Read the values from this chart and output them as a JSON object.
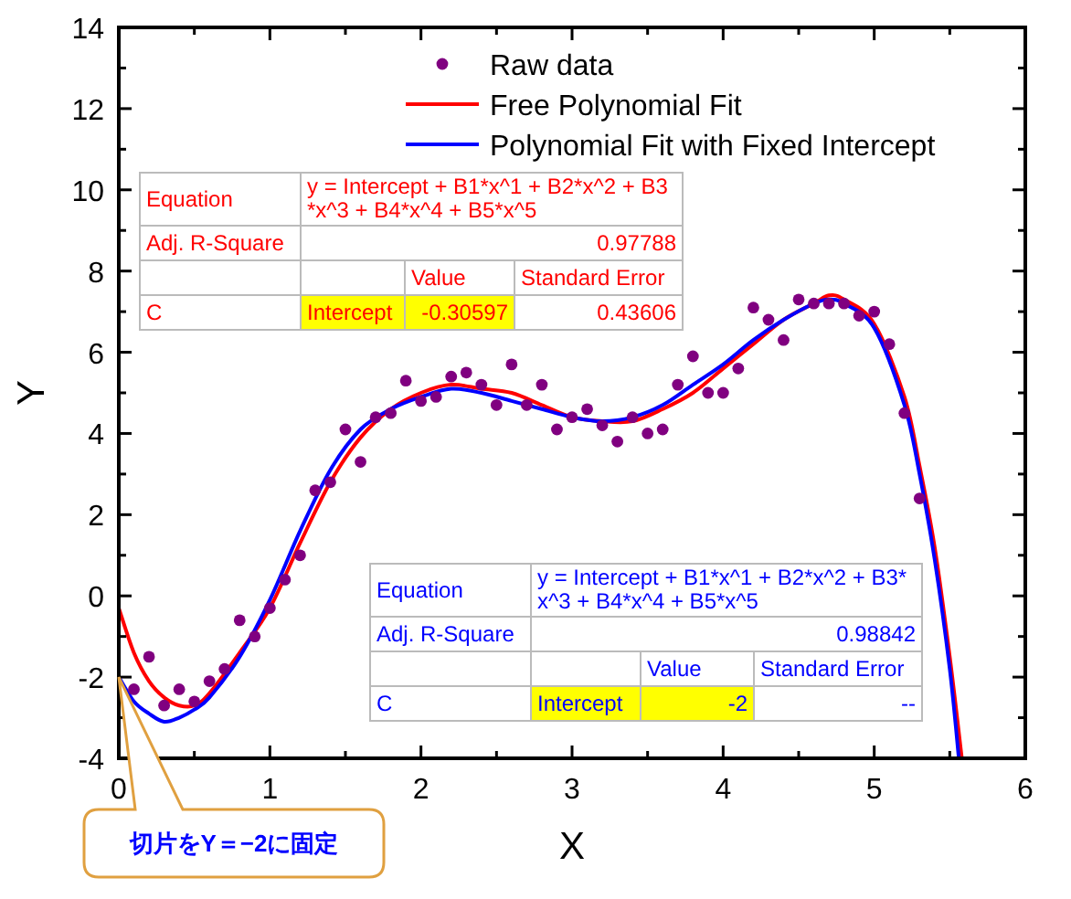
{
  "chart_data": {
    "type": "scatter",
    "xlabel": "X",
    "ylabel": "Y",
    "xlim": [
      0,
      6
    ],
    "xticks": [
      0,
      1,
      2,
      3,
      4,
      5,
      6
    ],
    "ylim": [
      -4,
      14
    ],
    "yticks": [
      -4,
      -2,
      0,
      2,
      4,
      6,
      8,
      10,
      12,
      14
    ],
    "grid": false,
    "legend": "top right",
    "series": [
      {
        "name": "Raw data",
        "marker": "circle",
        "color": "#800080",
        "x": [
          0.1,
          0.2,
          0.3,
          0.4,
          0.5,
          0.6,
          0.7,
          0.8,
          0.9,
          1.0,
          1.1,
          1.2,
          1.3,
          1.4,
          1.5,
          1.6,
          1.7,
          1.8,
          1.9,
          2.0,
          2.1,
          2.2,
          2.3,
          2.4,
          2.5,
          2.6,
          2.7,
          2.8,
          2.9,
          3.0,
          3.1,
          3.2,
          3.3,
          3.4,
          3.5,
          3.6,
          3.7,
          3.8,
          3.9,
          4.0,
          4.1,
          4.2,
          4.3,
          4.4,
          4.5,
          4.6,
          4.7,
          4.8,
          4.9,
          5.0,
          5.1,
          5.2,
          5.3
        ],
        "values": [
          -2.3,
          -1.5,
          -2.7,
          -2.3,
          -2.6,
          -2.1,
          -1.8,
          -0.6,
          -1.0,
          -0.3,
          0.4,
          1.0,
          2.6,
          2.8,
          4.1,
          3.3,
          4.4,
          4.5,
          5.3,
          4.8,
          4.9,
          5.4,
          5.5,
          5.2,
          4.7,
          5.7,
          4.7,
          5.2,
          4.1,
          4.4,
          4.6,
          4.2,
          3.8,
          4.4,
          4.0,
          4.1,
          5.2,
          5.9,
          5.0,
          5.0,
          5.6,
          7.1,
          6.8,
          6.3,
          7.3,
          7.2,
          7.2,
          7.2,
          6.9,
          7.0,
          6.2,
          4.5,
          2.4
        ]
      },
      {
        "name": "Free Polynomial Fit",
        "type": "line",
        "line_style": "solid",
        "color": "#ff0000",
        "x": [
          0,
          0.1,
          0.2,
          0.3,
          0.4,
          0.5,
          0.6,
          0.8,
          1.0,
          1.2,
          1.4,
          1.6,
          1.8,
          2.0,
          2.2,
          2.4,
          2.6,
          2.8,
          3.0,
          3.2,
          3.4,
          3.6,
          3.8,
          4.0,
          4.2,
          4.4,
          4.6,
          4.7,
          4.8,
          5.0,
          5.2,
          5.3,
          5.4,
          5.5,
          5.58
        ],
        "values": [
          -0.3,
          -1.4,
          -2.1,
          -2.5,
          -2.7,
          -2.7,
          -2.4,
          -1.4,
          -0.3,
          1.3,
          2.8,
          3.9,
          4.6,
          5.0,
          5.2,
          5.1,
          5.0,
          4.7,
          4.4,
          4.3,
          4.3,
          4.6,
          5.0,
          5.6,
          6.2,
          6.8,
          7.2,
          7.4,
          7.3,
          6.7,
          4.9,
          3.2,
          1.2,
          -1.5,
          -4.0
        ]
      },
      {
        "name": "Polynomial Fit with Fixed Intercept",
        "type": "line",
        "line_style": "solid",
        "color": "#0000ff",
        "x": [
          0,
          0.1,
          0.2,
          0.3,
          0.4,
          0.5,
          0.6,
          0.8,
          1.0,
          1.2,
          1.4,
          1.6,
          1.8,
          2.0,
          2.2,
          2.4,
          2.6,
          2.8,
          3.0,
          3.2,
          3.4,
          3.6,
          3.8,
          4.0,
          4.2,
          4.4,
          4.6,
          4.7,
          4.8,
          5.0,
          5.2,
          5.3,
          5.4,
          5.5,
          5.56
        ],
        "values": [
          -2.0,
          -2.6,
          -2.9,
          -3.1,
          -3.0,
          -2.8,
          -2.5,
          -1.5,
          -0.1,
          1.6,
          3.1,
          4.1,
          4.6,
          4.9,
          5.1,
          5.0,
          4.8,
          4.6,
          4.4,
          4.3,
          4.4,
          4.7,
          5.2,
          5.7,
          6.3,
          6.8,
          7.2,
          7.3,
          7.2,
          6.6,
          4.7,
          3.0,
          0.9,
          -1.8,
          -4.0
        ]
      }
    ],
    "annotations": [
      "Equation",
      "y = Intercept + B1*x^1 + B2*x^2 + B3*x^3 + B4*x^4 + B5*x^5",
      "Adj. R-Square",
      "0.97788",
      "Value",
      "Standard Error",
      "C",
      "Intercept",
      "-0.30597",
      "0.43606",
      "Equation",
      "y = Intercept + B1*x^1 + B2*x^2 + B3*x^3 + B4*x^4 + B5*x^5",
      "Adj. R-Square",
      "0.98842",
      "Value",
      "Standard Error",
      "C",
      "Intercept",
      "-2",
      "--",
      "切片をY＝−2に固定"
    ]
  }
}
